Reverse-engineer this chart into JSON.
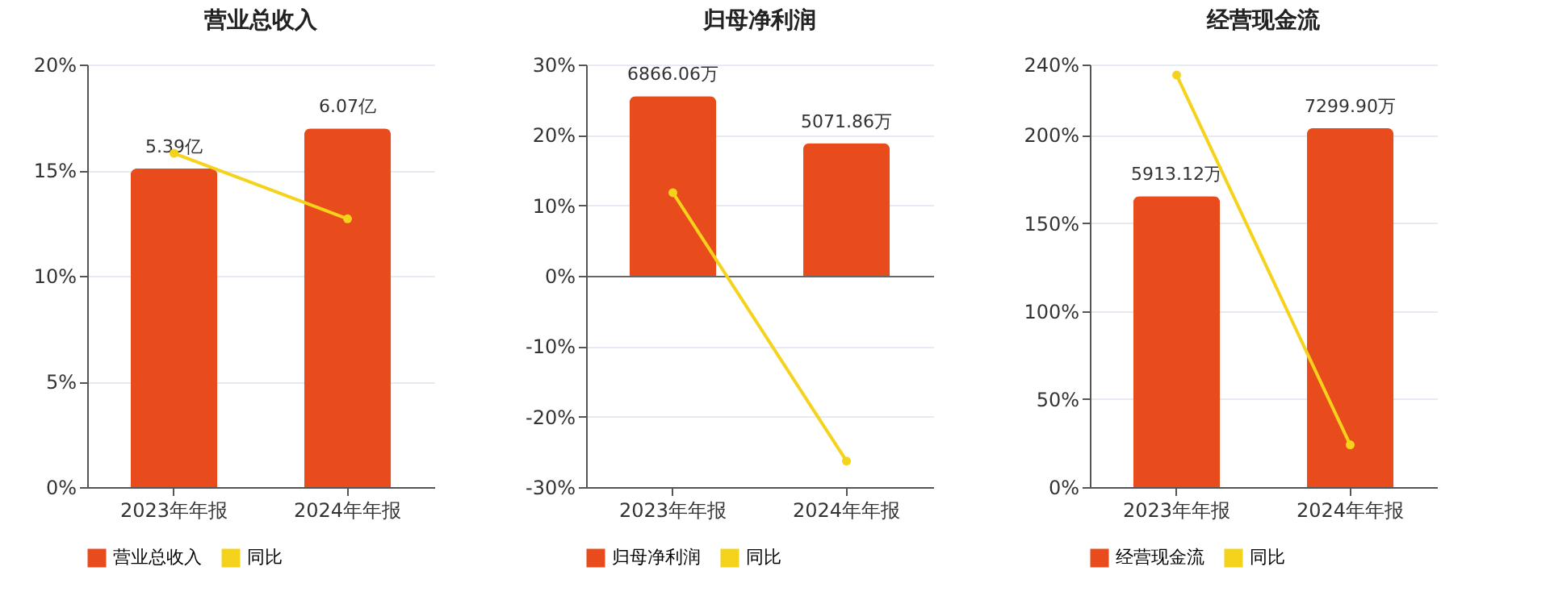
{
  "chart_data": [
    {
      "type": "bar",
      "title": "营业总收入",
      "categories": [
        "2023年年报",
        "2024年年报"
      ],
      "series": [
        {
          "name": "营业总收入",
          "axis": "y2",
          "color": "#e84c1c",
          "values": [
            5.39,
            6.07
          ],
          "value_labels": [
            "5.39亿",
            "6.07亿"
          ]
        },
        {
          "name": "同比",
          "type": "line",
          "color": "#f5d21b",
          "values": [
            15.8,
            12.7
          ]
        }
      ],
      "ylim": [
        0,
        20
      ],
      "yticks": [
        {
          "value": 0,
          "label": "0%"
        },
        {
          "value": 5,
          "label": "5%"
        },
        {
          "value": 10,
          "label": "10%"
        },
        {
          "value": 15,
          "label": "15%"
        },
        {
          "value": 20,
          "label": "20%"
        }
      ],
      "y2lim": [
        0,
        7.15
      ],
      "grid": "y",
      "legend": "bottom",
      "marker": "circle"
    },
    {
      "type": "bar",
      "title": "归母净利润",
      "categories": [
        "2023年年报",
        "2024年年报"
      ],
      "series": [
        {
          "name": "归母净利润",
          "axis": "y2",
          "color": "#e84c1c",
          "values": [
            6866.06,
            5071.86
          ],
          "value_labels": [
            "6866.06万",
            "5071.86万"
          ]
        },
        {
          "name": "同比",
          "type": "line",
          "color": "#f5d21b",
          "values": [
            11.8,
            -26.3
          ]
        }
      ],
      "ylim": [
        -30,
        30
      ],
      "yticks": [
        {
          "value": -30,
          "label": "-30%"
        },
        {
          "value": -20,
          "label": "-20%"
        },
        {
          "value": -10,
          "label": "-10%"
        },
        {
          "value": 0,
          "label": "0%"
        },
        {
          "value": 10,
          "label": "10%"
        },
        {
          "value": 20,
          "label": "20%"
        },
        {
          "value": 30,
          "label": "30%"
        }
      ],
      "y2lim": [
        -8080,
        8080
      ],
      "grid": "y",
      "legend": "bottom",
      "marker": "circle"
    },
    {
      "type": "bar",
      "title": "经营现金流",
      "categories": [
        "2023年年报",
        "2024年年报"
      ],
      "series": [
        {
          "name": "经营现金流",
          "axis": "y2",
          "color": "#e84c1c",
          "values": [
            5913.12,
            7299.9
          ],
          "value_labels": [
            "5913.12万",
            "7299.90万"
          ]
        },
        {
          "name": "同比",
          "type": "line",
          "color": "#f5d21b",
          "values": [
            234,
            24
          ]
        }
      ],
      "ylim": [
        0,
        240
      ],
      "yticks": [
        {
          "value": 0,
          "label": "0%"
        },
        {
          "value": 50,
          "label": "50%"
        },
        {
          "value": 100,
          "label": "100%"
        },
        {
          "value": 150,
          "label": "150%"
        },
        {
          "value": 200,
          "label": "200%"
        },
        {
          "value": 240,
          "label": "240%"
        }
      ],
      "y2lim": [
        0,
        8590
      ],
      "grid": "y",
      "legend": "bottom",
      "marker": "circle"
    }
  ]
}
